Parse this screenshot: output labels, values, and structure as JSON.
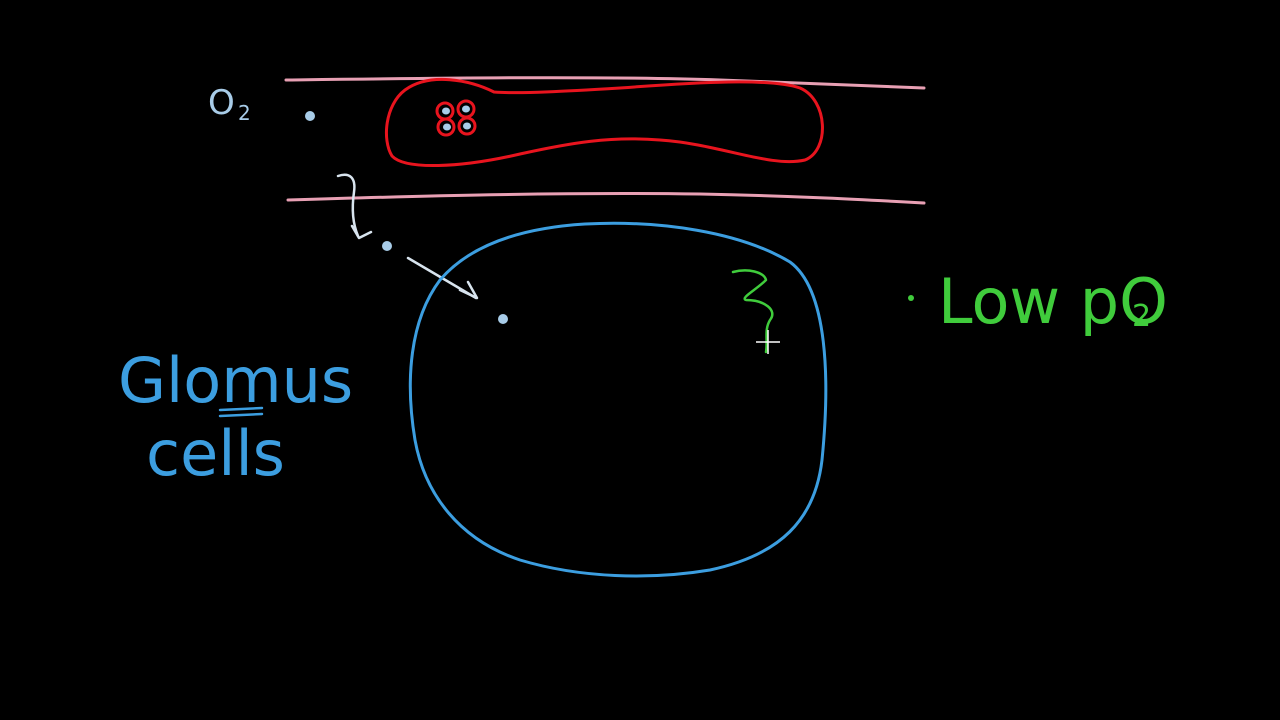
{
  "labels": {
    "oxygen": "O",
    "oxygen_sub": "2",
    "glomus_line1": "Glomus",
    "glomus_line2": "cells",
    "note_bullet": "·",
    "note_main": "Low pO",
    "note_sub": "2"
  },
  "colors": {
    "background": "#000000",
    "vessel_wall": "#e8a0b4",
    "red_cell": "#e8141e",
    "oxygen": "#a8cce8",
    "glomus": "#3c9ee0",
    "note": "#40cc3c",
    "arrow": "#d8e4ee",
    "cursor": "#ffffff"
  },
  "icons": {
    "cursor": "crosshair-cursor-icon"
  }
}
